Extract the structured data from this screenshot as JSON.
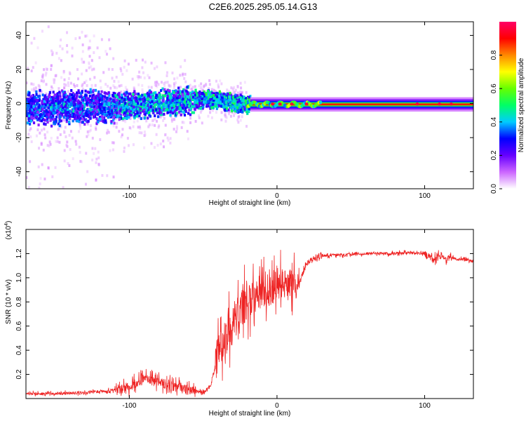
{
  "title": "C2E6.2025.295.05.14.G13",
  "chart_data": [
    {
      "type": "heatmap",
      "name": "spectrogram",
      "xlabel": "Height of straight line (km)",
      "ylabel": "Frequency (Hz)",
      "xlim": [
        -170,
        133
      ],
      "ylim": [
        -50,
        48
      ],
      "xticks": [
        -100,
        0,
        100
      ],
      "xtick_labels": [
        "-100",
        "0",
        "100"
      ],
      "yticks": [
        -40,
        -20,
        0,
        20,
        40
      ],
      "ytick_labels": [
        "-40",
        "-20",
        "0",
        "20",
        "40"
      ],
      "colorbar": {
        "label": "Normalized spectral amplitude",
        "range": [
          0,
          1
        ],
        "ticks": [
          0.0,
          0.2,
          0.4,
          0.6,
          0.8
        ],
        "tick_labels": [
          "0.0",
          "0.2",
          "0.4",
          "0.6",
          "0.8"
        ],
        "colormap": [
          "#ffffff",
          "#cc66ff",
          "#6600ff",
          "#0000ff",
          "#00ccff",
          "#00ff66",
          "#66ff00",
          "#ffff00",
          "#ff8800",
          "#ff0000",
          "#ff0066"
        ]
      }
    },
    {
      "type": "line",
      "name": "snr",
      "xlabel": "Height of straight line (km)",
      "ylabel": "SNR (10 * v/v)",
      "multiplier_label": "(x10",
      "multiplier_exp": "4",
      "multiplier_close": ")",
      "xlim": [
        -170,
        133
      ],
      "ylim": [
        0,
        1.4
      ],
      "xticks": [
        -100,
        0,
        100
      ],
      "xtick_labels": [
        "-100",
        "0",
        "100"
      ],
      "yticks": [
        0.2,
        0.4,
        0.6,
        0.8,
        1.0,
        1.2
      ],
      "ytick_labels": [
        "0.2",
        "0.4",
        "0.6",
        "0.8",
        "1.0",
        "1.2"
      ],
      "color": "#ee2222",
      "x": [
        -170,
        -150,
        -130,
        -110,
        -100,
        -90,
        -80,
        -70,
        -60,
        -50,
        -45,
        -40,
        -35,
        -30,
        -25,
        -20,
        -15,
        -10,
        -5,
        0,
        5,
        10,
        15,
        20,
        25,
        30,
        40,
        50,
        60,
        70,
        80,
        90,
        100,
        105,
        110,
        120,
        133
      ],
      "y": [
        0.04,
        0.04,
        0.05,
        0.07,
        0.1,
        0.16,
        0.14,
        0.1,
        0.07,
        0.05,
        0.1,
        0.35,
        0.5,
        0.6,
        0.72,
        0.8,
        0.85,
        0.88,
        0.9,
        0.92,
        0.97,
        0.93,
        0.95,
        1.12,
        1.16,
        1.18,
        1.19,
        1.19,
        1.2,
        1.2,
        1.2,
        1.21,
        1.2,
        1.16,
        1.17,
        1.16,
        1.14
      ]
    }
  ]
}
